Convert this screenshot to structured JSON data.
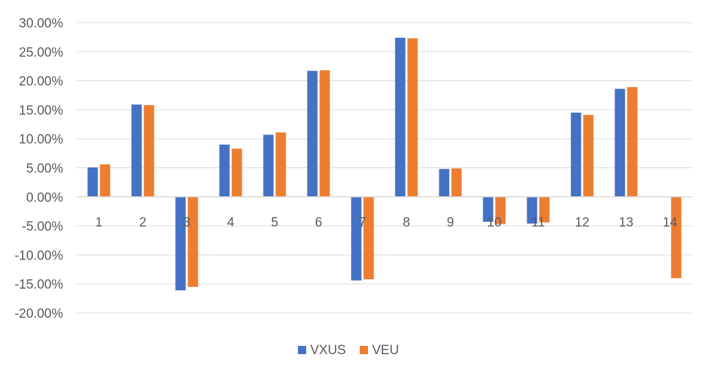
{
  "chart_data": {
    "type": "bar",
    "categories": [
      "1",
      "2",
      "3",
      "4",
      "5",
      "6",
      "7",
      "8",
      "9",
      "10",
      "11",
      "12",
      "13",
      "14"
    ],
    "series": [
      {
        "name": "VXUS",
        "color": "#4472C4",
        "values": [
          0.0508,
          0.159,
          -0.161,
          0.09,
          0.107,
          0.217,
          -0.144,
          0.274,
          0.048,
          -0.043,
          -0.046,
          0.145,
          0.186,
          null
        ]
      },
      {
        "name": "VEU",
        "color": "#ED7D31",
        "values": [
          0.056,
          0.158,
          -0.155,
          0.083,
          0.111,
          0.218,
          -0.142,
          0.273,
          0.049,
          -0.047,
          -0.044,
          0.141,
          0.189,
          -0.14
        ]
      }
    ],
    "ylim": [
      -0.2,
      0.3
    ],
    "yticks": [
      "30.00%",
      "25.00%",
      "20.00%",
      "15.00%",
      "10.00%",
      "5.00%",
      "0.00%",
      "-5.00%",
      "-10.00%",
      "-15.00%",
      "-20.00%"
    ],
    "grid": true,
    "legend": "bottom-center",
    "title": "",
    "xlabel": "",
    "ylabel": ""
  }
}
